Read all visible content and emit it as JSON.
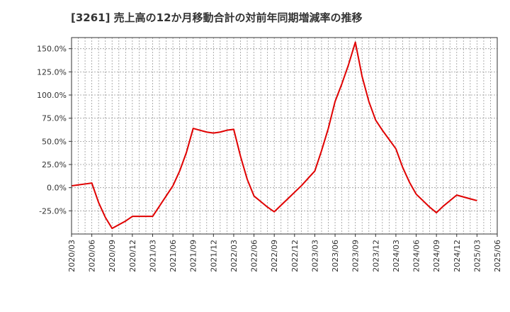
{
  "chart_data": {
    "type": "line",
    "title": "[3261]  売上高の12か月移動合計の対前年同期増減率の推移",
    "xlabel": "",
    "ylabel": "",
    "ylim": [
      -50,
      162
    ],
    "y_ticks": [
      "150.0%",
      "125.0%",
      "100.0%",
      "75.0%",
      "50.0%",
      "25.0%",
      "0.0%",
      "-25.0%"
    ],
    "y_tick_values": [
      150,
      125,
      100,
      75,
      50,
      25,
      0,
      -25
    ],
    "categories": [
      "2020/03",
      "2020/06",
      "2020/09",
      "2020/12",
      "2021/03",
      "2021/06",
      "2021/09",
      "2021/12",
      "2022/03",
      "2022/06",
      "2022/09",
      "2022/12",
      "2023/03",
      "2023/06",
      "2023/09",
      "2023/12",
      "2024/03",
      "2024/06",
      "2024/09",
      "2024/12",
      "2025/03",
      "2025/06"
    ],
    "x": [
      "2020/03",
      "2020/04",
      "2020/05",
      "2020/06",
      "2020/07",
      "2020/08",
      "2020/09",
      "2020/10",
      "2020/11",
      "2020/12",
      "2021/01",
      "2021/02",
      "2021/03",
      "2021/04",
      "2021/05",
      "2021/06",
      "2021/07",
      "2021/08",
      "2021/09",
      "2021/10",
      "2021/11",
      "2021/12",
      "2022/01",
      "2022/02",
      "2022/03",
      "2022/04",
      "2022/05",
      "2022/06",
      "2022/07",
      "2022/08",
      "2022/09",
      "2022/10",
      "2022/11",
      "2022/12",
      "2023/01",
      "2023/02",
      "2023/03",
      "2023/04",
      "2023/05",
      "2023/06",
      "2023/07",
      "2023/08",
      "2023/09",
      "2023/10",
      "2023/11",
      "2023/12",
      "2024/01",
      "2024/02",
      "2024/03",
      "2024/04",
      "2024/05",
      "2024/06",
      "2024/07",
      "2024/08",
      "2024/09",
      "2024/10",
      "2024/11",
      "2024/12",
      "2025/01",
      "2025/02",
      "2025/03"
    ],
    "series": [
      {
        "name": "対前年同期増減率",
        "color": "#e00000",
        "values": [
          2,
          3,
          4,
          5,
          -16,
          -32,
          -44,
          -40,
          -36,
          -31,
          -31,
          -31,
          -31,
          -20,
          -9,
          2,
          18,
          38,
          64,
          62,
          60,
          59,
          60,
          62,
          63,
          34,
          9,
          -9,
          -15,
          -21,
          -26,
          -19,
          -12,
          -5,
          2,
          10,
          18,
          40,
          64,
          93,
          112,
          133,
          157,
          120,
          93,
          73,
          62,
          52,
          42,
          22,
          6,
          -7,
          -14,
          -21,
          -27,
          -20,
          -14,
          -8,
          -10,
          -12,
          -14
        ]
      }
    ],
    "grid": true,
    "legend": "none"
  }
}
